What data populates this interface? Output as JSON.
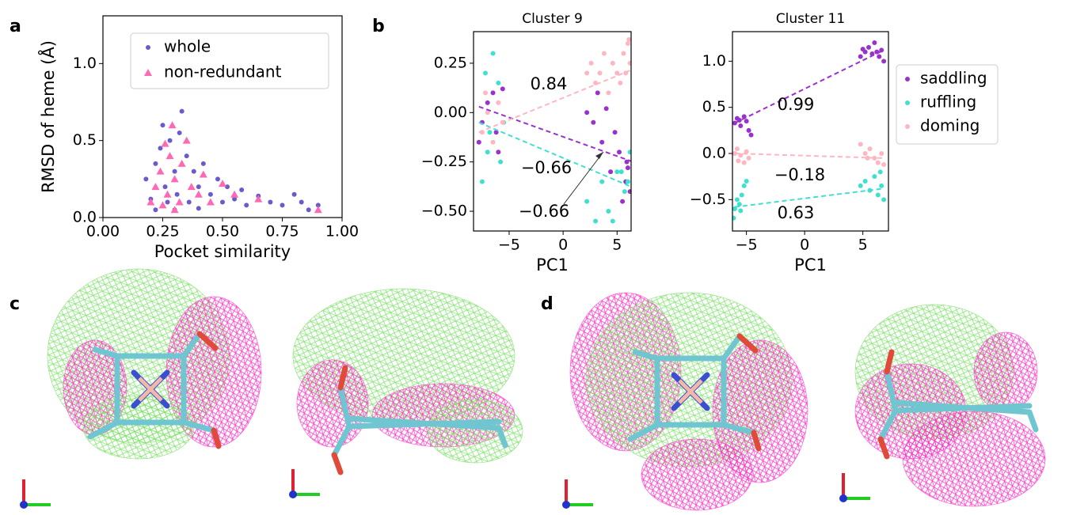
{
  "panel_labels": [
    "a",
    "b",
    "c",
    "d"
  ],
  "chart_data": [
    {
      "type": "scatter",
      "xlabel": "Pocket similarity",
      "ylabel": "RMSD of heme (Å)",
      "xlim": [
        0,
        1
      ],
      "ylim": [
        0,
        1.31
      ],
      "xticks": [
        {
          "value": 0,
          "label": "0.00"
        },
        {
          "value": 0.25,
          "label": "0.25"
        },
        {
          "value": 0.5,
          "label": "0.50"
        },
        {
          "value": 0.75,
          "label": "0.75"
        },
        {
          "value": 1,
          "label": "1.00"
        }
      ],
      "yticks": [
        {
          "value": 0,
          "label": "0.0"
        },
        {
          "value": 0.5,
          "label": "0.5"
        },
        {
          "value": 1,
          "label": "1.0"
        }
      ],
      "legend": "upper right",
      "series": [
        {
          "name": "whole",
          "color": "#6a5acd",
          "marker": "circle",
          "x": [
            0.18,
            0.2,
            0.22,
            0.24,
            0.25,
            0.26,
            0.27,
            0.28,
            0.3,
            0.31,
            0.32,
            0.33,
            0.35,
            0.36,
            0.38,
            0.4,
            0.42,
            0.45,
            0.48,
            0.5,
            0.52,
            0.55,
            0.58,
            0.6,
            0.65,
            0.7,
            0.75,
            0.8,
            0.83,
            0.86,
            0.9,
            0.22,
            0.3,
            0.4
          ],
          "values": [
            0.25,
            0.12,
            0.35,
            0.45,
            0.6,
            0.2,
            0.1,
            0.5,
            0.3,
            0.15,
            0.55,
            0.69,
            0.4,
            0.1,
            0.3,
            0.2,
            0.35,
            0.15,
            0.25,
            0.1,
            0.2,
            0.12,
            0.18,
            0.08,
            0.14,
            0.1,
            0.08,
            0.15,
            0.1,
            0.05,
            0.08,
            0.05,
            0.05,
            0.06
          ]
        },
        {
          "name": "non-redundant",
          "color": "#ff69b4",
          "marker": "triangle",
          "x": [
            0.2,
            0.22,
            0.24,
            0.26,
            0.27,
            0.28,
            0.29,
            0.3,
            0.32,
            0.33,
            0.35,
            0.37,
            0.4,
            0.42,
            0.45,
            0.5,
            0.55,
            0.65,
            0.9,
            0.25,
            0.3
          ],
          "values": [
            0.1,
            0.2,
            0.3,
            0.48,
            0.15,
            0.4,
            0.6,
            0.25,
            0.1,
            0.35,
            0.5,
            0.2,
            0.15,
            0.28,
            0.1,
            0.22,
            0.15,
            0.12,
            0.05,
            0.08,
            0.05
          ]
        }
      ]
    },
    {
      "type": "scatter",
      "title": "Cluster 9",
      "xlabel": "PC1",
      "xlim": [
        -8.3,
        6.3
      ],
      "ylim": [
        -0.6,
        0.41
      ],
      "xticks": [
        {
          "value": -5,
          "label": "−5"
        },
        0,
        5
      ],
      "yticks": [
        {
          "value": -0.5,
          "label": "−0.50"
        },
        {
          "value": -0.25,
          "label": "−0.25"
        },
        {
          "value": 0,
          "label": "0.00"
        },
        {
          "value": 0.25,
          "label": "0.25"
        }
      ],
      "annotations": [
        "0.84",
        "−0.66",
        "−0.66"
      ],
      "series": [
        {
          "color": "#9932cc",
          "x": [
            -7.5,
            -7,
            -6.5,
            -6,
            -5.6,
            -6.2,
            -7.8,
            2.2,
            2.8,
            3.2,
            3.6,
            4,
            4.4,
            4.8,
            5.2,
            5.5,
            5.8,
            6,
            6.2,
            5.9
          ],
          "values": [
            -0.05,
            0.05,
            0.1,
            -0.2,
            0.12,
            -0.1,
            -0.15,
            0,
            -0.05,
            0.1,
            -0.15,
            0.02,
            -0.3,
            -0.1,
            -0.2,
            -0.45,
            -0.35,
            -0.28,
            -0.4,
            -0.25
          ],
          "fit": {
            "x": [
              -7.8,
              6.5
            ],
            "values": [
              0.03,
              -0.25
            ]
          }
        },
        {
          "color": "#40e0d0",
          "x": [
            -7.5,
            -7,
            -6.5,
            -6,
            -6.8,
            -5.5,
            -7.2,
            -5.8,
            2.2,
            3,
            3.6,
            4.2,
            4.6,
            5,
            5.4,
            5.7,
            6,
            6.2
          ],
          "values": [
            -0.35,
            -0.2,
            0.3,
            0.15,
            -0.1,
            -0.05,
            0.2,
            -0.25,
            -0.45,
            -0.55,
            -0.35,
            -0.5,
            -0.55,
            -0.3,
            -0.3,
            -0.4,
            -0.35,
            -0.2
          ],
          "fit": {
            "x": [
              -7.8,
              6.5
            ],
            "values": [
              -0.05,
              -0.38
            ]
          }
        },
        {
          "color": "#ffb6c1",
          "x": [
            -7.5,
            -7,
            -6.5,
            -6,
            -5.6,
            -7.2,
            2.2,
            2.6,
            3,
            3.4,
            3.8,
            4.2,
            4.6,
            5,
            5.3,
            5.6,
            5.8,
            6,
            6.2,
            6.1
          ],
          "values": [
            -0.1,
            0,
            -0.15,
            0.05,
            -0.05,
            0.1,
            0.2,
            0.25,
            0.15,
            0.2,
            0.3,
            0.1,
            0.25,
            0.2,
            0.15,
            0.3,
            0.2,
            0.35,
            0.25,
            0.37
          ],
          "fit": {
            "x": [
              -7.8,
              6.5
            ],
            "values": [
              -0.1,
              0.22
            ]
          }
        }
      ]
    },
    {
      "type": "scatter",
      "title": "Cluster 11",
      "xlabel": "PC1",
      "xlim": [
        -6.2,
        7.2
      ],
      "ylim": [
        -0.84,
        1.32
      ],
      "xticks": [
        {
          "value": -5,
          "label": "−5"
        },
        0,
        5
      ],
      "yticks": [
        {
          "value": -0.5,
          "label": "−0.5"
        },
        {
          "value": 0,
          "label": "0.0"
        },
        {
          "value": 0.5,
          "label": "0.5"
        },
        {
          "value": 1,
          "label": "1.0"
        }
      ],
      "annotations": [
        "0.99",
        "−0.18",
        "0.63"
      ],
      "legend": "outside right",
      "series": [
        {
          "name": "saddling",
          "color": "#9932cc",
          "x": [
            -6,
            -5.8,
            -5.5,
            -5.2,
            -5,
            -4.8,
            -4.6,
            -5.6,
            4.8,
            5.2,
            5.5,
            5.8,
            6,
            6.2,
            6.4,
            6.6,
            6.8,
            5
          ],
          "values": [
            0.33,
            0.38,
            0.3,
            0.4,
            0.35,
            0.25,
            0.2,
            0.36,
            1.05,
            1.1,
            1.15,
            1.08,
            1.2,
            1.1,
            1.05,
            1.12,
            1,
            1.13
          ],
          "fit": {
            "x": [
              -6,
              6.8
            ],
            "values": [
              0.33,
              1.12
            ]
          }
        },
        {
          "name": "ruffling",
          "color": "#40e0d0",
          "x": [
            -6,
            -5.8,
            -5.6,
            -5.4,
            -5.2,
            -5,
            -6.1,
            -5.5,
            4.8,
            5.2,
            5.6,
            6,
            6.3,
            6.6,
            6.8,
            6.5
          ],
          "values": [
            -0.6,
            -0.5,
            -0.55,
            -0.45,
            -0.35,
            -0.3,
            -0.7,
            -0.62,
            -0.35,
            -0.3,
            -0.4,
            -0.25,
            -0.45,
            -0.35,
            -0.5,
            -0.2
          ],
          "fit": {
            "x": [
              -6,
              6.8
            ],
            "values": [
              -0.58,
              -0.38
            ]
          }
        },
        {
          "name": "doming",
          "color": "#ffb6c1",
          "x": [
            -6,
            -5.8,
            -5.5,
            -5.2,
            -5,
            -4.8,
            -5.7,
            4.8,
            5.2,
            5.6,
            6,
            6.3,
            6.6,
            6.8,
            5.4
          ],
          "values": [
            0,
            0.05,
            -0.02,
            -0.1,
            0.02,
            -0.05,
            -0.08,
            0.1,
            0,
            0.05,
            -0.05,
            -0.1,
            0,
            -0.12,
            -0.05
          ],
          "fit": {
            "x": [
              -6,
              6.8
            ],
            "values": [
              0,
              -0.05
            ]
          }
        }
      ]
    }
  ]
}
